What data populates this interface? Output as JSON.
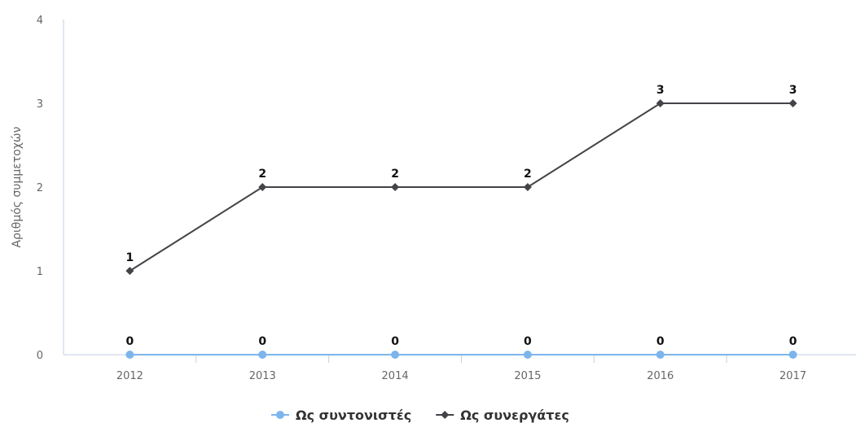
{
  "chart_data": {
    "type": "line",
    "title": "",
    "xlabel": "",
    "ylabel": "Αριθμός συμμετοχών",
    "categories": [
      "2012",
      "2013",
      "2014",
      "2015",
      "2016",
      "2017"
    ],
    "ylim": [
      0,
      4
    ],
    "yticks": [
      0,
      1,
      2,
      3,
      4
    ],
    "grid": false,
    "legend_position": "bottom-center",
    "series": [
      {
        "name": "Ως συντονιστές",
        "values": [
          0,
          0,
          0,
          0,
          0,
          0
        ],
        "color": "#7cb5ec",
        "marker": "circle",
        "data_labels": [
          "0",
          "0",
          "0",
          "0",
          "0",
          "0"
        ]
      },
      {
        "name": "Ως συνεργάτες",
        "values": [
          1,
          2,
          2,
          2,
          3,
          3
        ],
        "color": "#434348",
        "marker": "diamond",
        "data_labels": [
          "1",
          "2",
          "2",
          "2",
          "3",
          "3"
        ]
      }
    ]
  }
}
